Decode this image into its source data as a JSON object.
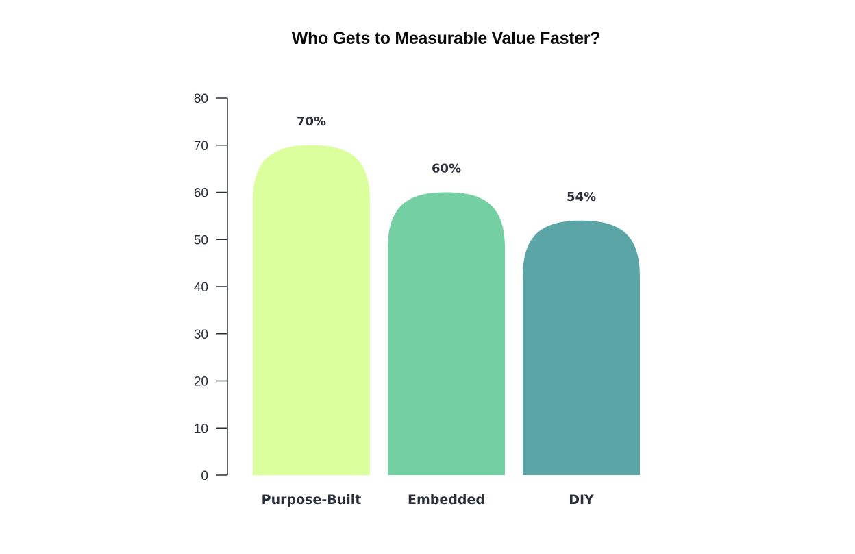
{
  "chart_data": {
    "type": "bar",
    "title": "Who Gets to Measurable Value Faster?",
    "xlabel": "",
    "ylabel": "",
    "categories": [
      "Purpose-Built",
      "Embedded",
      "DIY"
    ],
    "values": [
      70,
      60,
      54
    ],
    "value_labels": [
      "70%",
      "60%",
      "54%"
    ],
    "ylim": [
      0,
      80
    ],
    "yticks": [
      0,
      10,
      20,
      30,
      40,
      50,
      60,
      70,
      80
    ],
    "grid": false,
    "legend": "none",
    "colors": [
      "#daff9c",
      "#74cfa2",
      "#5ba5a6"
    ],
    "axis_color": "#2b2f3a"
  }
}
